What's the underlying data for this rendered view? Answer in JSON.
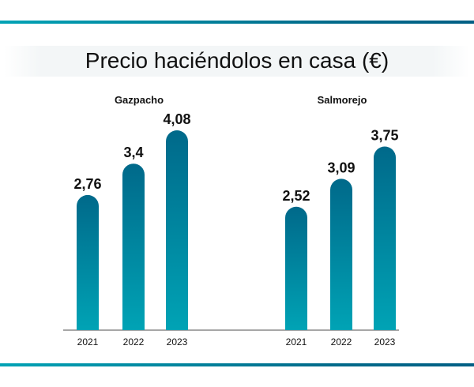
{
  "chart_data": {
    "type": "bar",
    "title": "Precio haciéndolos en casa (€)",
    "groups": [
      {
        "name": "Gazpacho",
        "categories": [
          "2021",
          "2022",
          "2023"
        ],
        "values": [
          2.76,
          3.4,
          4.08
        ],
        "labels": [
          "2,76",
          "3,4",
          "4,08"
        ]
      },
      {
        "name": "Salmorejo",
        "categories": [
          "2021",
          "2022",
          "2023"
        ],
        "values": [
          2.52,
          3.09,
          3.75
        ],
        "labels": [
          "2,52",
          "3,09",
          "3,75"
        ]
      }
    ],
    "ylim": [
      0,
      4.5
    ],
    "grid": false,
    "colors": {
      "bar_top": "#00698a",
      "bar_bottom": "#00a3b5",
      "axis": "#8a8a8a"
    }
  }
}
